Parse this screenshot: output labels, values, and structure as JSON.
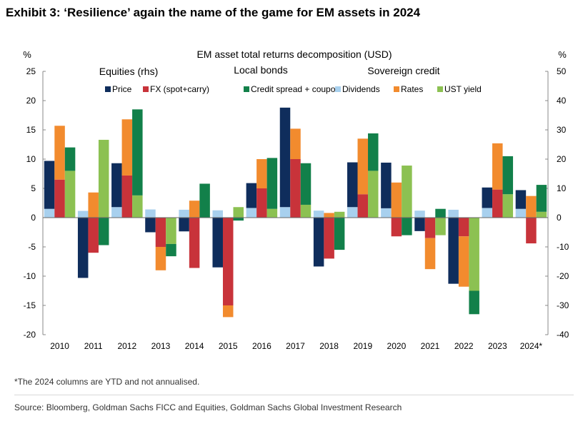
{
  "header": {
    "title": "Exhibit 3: ‘Resilience’ again the name of the game for EM assets in 2024"
  },
  "footer": {
    "footnote": "*The 2024 columns are YTD and not annualised.",
    "source": "Source: Bloomberg, Goldman Sachs FICC and Equities, Goldman Sachs Global Investment Research"
  },
  "chart_data": {
    "type": "bar",
    "title": "EM asset total returns decomposition (USD)",
    "left_axis_unit": "%",
    "right_axis_unit": "%",
    "ylim_left": [
      -20,
      25
    ],
    "ylim_right": [
      -40,
      50
    ],
    "yticks_left": [
      "25",
      "20",
      "15",
      "10",
      "5",
      "0",
      "-5",
      "-10",
      "-15",
      "-20"
    ],
    "yticks_right": [
      "50",
      "40",
      "30",
      "20",
      "10",
      "0",
      "-10",
      "-20",
      "-30",
      "-40"
    ],
    "group_labels": [
      "Equities (rhs)",
      "Local bonds",
      "Sovereign credit"
    ],
    "categories": [
      "2010",
      "2011",
      "2012",
      "2013",
      "2014",
      "2015",
      "2016",
      "2017",
      "2018",
      "2019",
      "2020",
      "2021",
      "2022",
      "2023",
      "2024*"
    ],
    "colors": {
      "Price": "#0f2d5c",
      "FX (spot+carry)": "#c8333a",
      "Credit spread + coupon": "#12804a",
      "Dividends": "#a8d0ee",
      "Rates": "#f28b2e",
      "UST yield": "#8cc152"
    },
    "legend": [
      "Price",
      "FX (spot+carry)",
      "Credit spread + coupon",
      "Dividends",
      "Rates",
      "UST yield"
    ],
    "grid": false,
    "stacks": [
      {
        "name": "Equities (rhs)",
        "axis": "right",
        "series": [
          {
            "name": "Dividends",
            "values": [
              3,
              2.3,
              3.6,
              2.8,
              2.7,
              2.5,
              3.3,
              3.6,
              2.4,
              3.6,
              3.2,
              2.4,
              2.7,
              3.3,
              3
            ]
          },
          {
            "name": "Price",
            "values": [
              16.4,
              -20.6,
              15,
              -5,
              -4.7,
              -17,
              8.5,
              34,
              -16.7,
              15.3,
              15.6,
              -4.6,
              -22.6,
              7,
              6.4
            ]
          }
        ]
      },
      {
        "name": "Local bonds",
        "axis": "left",
        "series": [
          {
            "name": "FX (spot+carry)",
            "values": [
              6.5,
              -6,
              7.2,
              -5,
              -8.6,
              -15,
              5,
              10,
              -7,
              4,
              -3.2,
              -3.5,
              -3.2,
              4.8,
              -4.4
            ]
          },
          {
            "name": "Rates",
            "values": [
              9.2,
              4.3,
              9.6,
              -4,
              2.9,
              -2,
              5,
              5.2,
              0.8,
              9.5,
              6,
              -5.3,
              -8.6,
              7.9,
              3.7
            ]
          }
        ]
      },
      {
        "name": "Sovereign credit",
        "axis": "left",
        "series": [
          {
            "name": "UST yield",
            "values": [
              8,
              13.3,
              3.8,
              -4.5,
              0,
              1.8,
              1.5,
              2.2,
              1,
              8,
              8.9,
              -3,
              -12.5,
              4,
              1
            ]
          },
          {
            "name": "Credit spread + coupon",
            "values": [
              4,
              -4.7,
              14.7,
              -2.1,
              5.8,
              -0.5,
              8.7,
              7.1,
              -5.5,
              6.4,
              -3,
              1.5,
              -4,
              6.5,
              4.6
            ]
          }
        ]
      }
    ]
  }
}
